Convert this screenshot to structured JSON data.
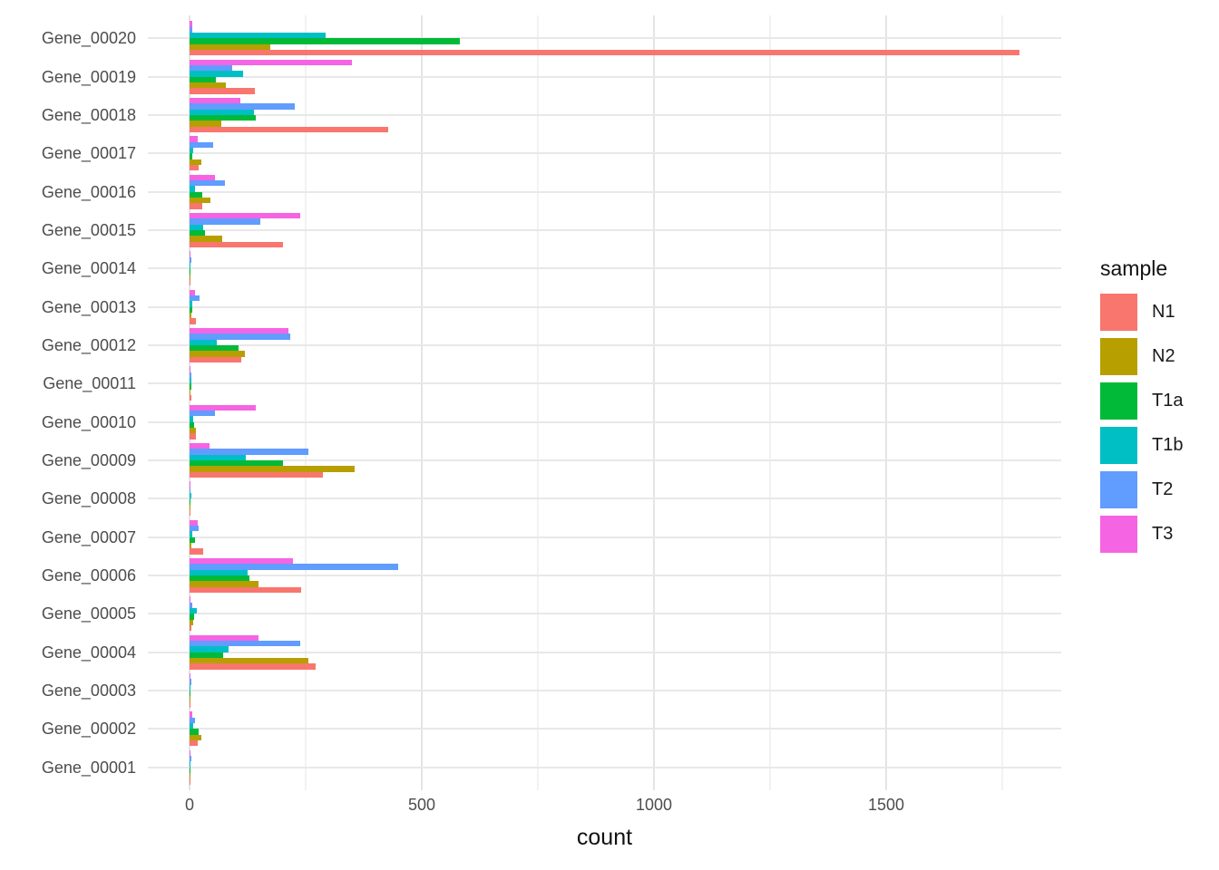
{
  "chart_data": {
    "type": "bar",
    "orientation": "horizontal",
    "title": "",
    "xlabel": "count",
    "ylabel": "",
    "xlim": [
      -90,
      1877
    ],
    "x_ticks": [
      0,
      500,
      1000,
      1500
    ],
    "x_tick_labels": [
      "0",
      "500",
      "1000",
      "1500"
    ],
    "x_minor_gridlines": [
      250,
      750,
      1250,
      1750
    ],
    "grid": "on",
    "legend": {
      "title": "sample",
      "position": "right"
    },
    "categories": [
      "Gene_00020",
      "Gene_00019",
      "Gene_00018",
      "Gene_00017",
      "Gene_00016",
      "Gene_00015",
      "Gene_00014",
      "Gene_00013",
      "Gene_00012",
      "Gene_00011",
      "Gene_00010",
      "Gene_00009",
      "Gene_00008",
      "Gene_00007",
      "Gene_00006",
      "Gene_00005",
      "Gene_00004",
      "Gene_00003",
      "Gene_00002",
      "Gene_00001"
    ],
    "series": [
      {
        "name": "N1",
        "color": "#F8766D",
        "values": [
          1787,
          140,
          428,
          19,
          27,
          201,
          1,
          13,
          112,
          3,
          14,
          287,
          1,
          29,
          241,
          3,
          271,
          1,
          18,
          1
        ]
      },
      {
        "name": "N2",
        "color": "#B79F00",
        "values": [
          173,
          78,
          69,
          25,
          45,
          70,
          1,
          4,
          120,
          1,
          13,
          356,
          1,
          3,
          149,
          7,
          256,
          1,
          25,
          1
        ]
      },
      {
        "name": "T1a",
        "color": "#00BA38",
        "values": [
          582,
          56,
          142,
          5,
          28,
          34,
          1,
          5,
          105,
          3,
          10,
          201,
          1,
          11,
          129,
          10,
          73,
          2,
          19,
          1
        ]
      },
      {
        "name": "T1b",
        "color": "#00BFC4",
        "values": [
          292,
          115,
          138,
          7,
          11,
          29,
          1,
          5,
          58,
          3,
          8,
          121,
          3,
          5,
          125,
          15,
          84,
          1,
          8,
          1
        ]
      },
      {
        "name": "T2",
        "color": "#619CFF",
        "values": [
          6,
          91,
          227,
          51,
          77,
          153,
          4,
          21,
          216,
          4,
          54,
          255,
          1,
          20,
          450,
          5,
          239,
          3,
          12,
          3
        ]
      },
      {
        "name": "T3",
        "color": "#F564E3",
        "values": [
          5,
          349,
          109,
          18,
          54,
          238,
          1,
          12,
          212,
          1,
          143,
          42,
          1,
          18,
          222,
          1,
          148,
          1,
          5,
          1
        ]
      }
    ],
    "style": {
      "background": "#ffffff",
      "axis_text_color": "#4d4d4d",
      "title_text_color": "#111111",
      "major_grid_color": "#e4e4e4",
      "minor_grid_color": "#f2f2f2"
    }
  }
}
